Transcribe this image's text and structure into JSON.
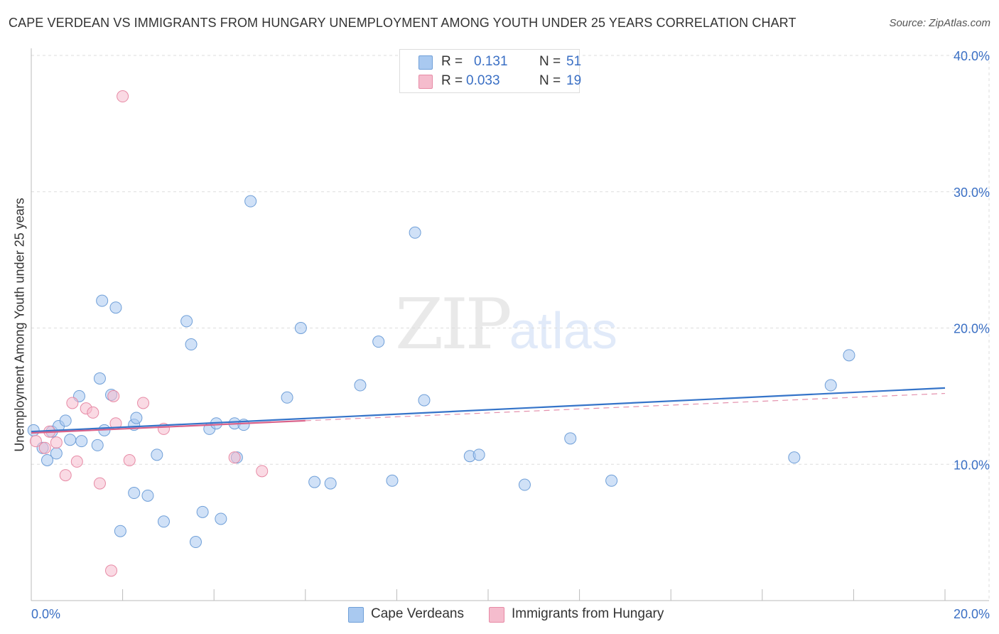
{
  "title": "CAPE VERDEAN VS IMMIGRANTS FROM HUNGARY UNEMPLOYMENT AMONG YOUTH UNDER 25 YEARS CORRELATION CHART",
  "source": "Source: ZipAtlas.com",
  "watermark": {
    "zip": "ZIP",
    "atlas": "atlas"
  },
  "legend": {
    "rows": [
      {
        "r_label": "R =",
        "r_value": "0.131",
        "n_label": "N =",
        "n_value": "51"
      },
      {
        "r_label": "R =",
        "r_value": "0.033",
        "n_label": "N =",
        "n_value": "19"
      }
    ]
  },
  "bottom_legend": [
    {
      "label": "Cape Verdeans"
    },
    {
      "label": "Immigrants from Hungary"
    }
  ],
  "colors": {
    "blue_fill": "#a9c9f0",
    "blue_stroke": "#6f9fd8",
    "blue_line": "#3574c9",
    "pink_fill": "#f5bccd",
    "pink_stroke": "#e78aa5",
    "pink_line": "#d9628a",
    "axis_text": "#3a6fc4",
    "grid": "#dddddd"
  },
  "chart_data": {
    "type": "scatter",
    "title": "CAPE VERDEAN VS IMMIGRANTS FROM HUNGARY UNEMPLOYMENT AMONG YOUTH UNDER 25 YEARS CORRELATION CHART",
    "xlabel": "",
    "ylabel": "Unemployment Among Youth under 25 years",
    "xlim": [
      0,
      20
    ],
    "ylim": [
      0,
      40
    ],
    "x_tick_labels": [
      {
        "value": 0,
        "label": "0.0%"
      },
      {
        "value": 20,
        "label": "20.0%"
      }
    ],
    "y_tick_labels": [
      {
        "value": 10,
        "label": "10.0%"
      },
      {
        "value": 20,
        "label": "20.0%"
      },
      {
        "value": 30,
        "label": "30.0%"
      },
      {
        "value": 40,
        "label": "40.0%"
      }
    ],
    "series": [
      {
        "name": "Cape Verdeans",
        "color": "blue",
        "r": 0.131,
        "n": 51,
        "trend": {
          "x": [
            0,
            20
          ],
          "y": [
            12.4,
            15.6
          ]
        },
        "points": [
          [
            0.05,
            12.5
          ],
          [
            0.25,
            11.2
          ],
          [
            0.35,
            10.3
          ],
          [
            0.45,
            12.4
          ],
          [
            0.55,
            10.8
          ],
          [
            0.6,
            12.8
          ],
          [
            0.75,
            13.2
          ],
          [
            0.85,
            11.8
          ],
          [
            1.05,
            15.0
          ],
          [
            1.1,
            11.7
          ],
          [
            1.45,
            11.4
          ],
          [
            1.6,
            12.5
          ],
          [
            1.5,
            16.3
          ],
          [
            1.55,
            22.0
          ],
          [
            1.75,
            15.1
          ],
          [
            1.85,
            21.5
          ],
          [
            1.95,
            5.1
          ],
          [
            2.25,
            7.9
          ],
          [
            2.25,
            12.9
          ],
          [
            2.3,
            13.4
          ],
          [
            2.55,
            7.7
          ],
          [
            2.75,
            10.7
          ],
          [
            2.9,
            5.8
          ],
          [
            3.5,
            18.8
          ],
          [
            3.4,
            20.5
          ],
          [
            3.6,
            4.3
          ],
          [
            3.75,
            6.5
          ],
          [
            3.9,
            12.6
          ],
          [
            4.15,
            6.0
          ],
          [
            4.05,
            13.0
          ],
          [
            4.45,
            13.0
          ],
          [
            4.8,
            29.3
          ],
          [
            4.5,
            10.5
          ],
          [
            4.65,
            12.9
          ],
          [
            5.6,
            14.9
          ],
          [
            5.9,
            20.0
          ],
          [
            6.2,
            8.7
          ],
          [
            6.55,
            8.6
          ],
          [
            7.2,
            15.8
          ],
          [
            7.6,
            19.0
          ],
          [
            7.9,
            8.8
          ],
          [
            8.4,
            27.0
          ],
          [
            8.6,
            14.7
          ],
          [
            9.6,
            10.6
          ],
          [
            9.8,
            10.7
          ],
          [
            10.8,
            8.5
          ],
          [
            11.8,
            11.9
          ],
          [
            12.7,
            8.8
          ],
          [
            16.7,
            10.5
          ],
          [
            17.5,
            15.8
          ],
          [
            17.9,
            18.0
          ]
        ]
      },
      {
        "name": "Immigrants from Hungary",
        "color": "pink",
        "r": 0.033,
        "n": 19,
        "trend": {
          "x": [
            0,
            6.0
          ],
          "y": [
            12.3,
            13.2
          ]
        },
        "trend_dashed": {
          "x": [
            6.0,
            20
          ],
          "y": [
            13.2,
            15.2
          ]
        },
        "points": [
          [
            0.1,
            11.7
          ],
          [
            0.3,
            11.2
          ],
          [
            0.4,
            12.4
          ],
          [
            0.55,
            11.6
          ],
          [
            0.75,
            9.2
          ],
          [
            0.9,
            14.5
          ],
          [
            1.0,
            10.2
          ],
          [
            1.2,
            14.1
          ],
          [
            1.35,
            13.8
          ],
          [
            1.5,
            8.6
          ],
          [
            1.75,
            2.2
          ],
          [
            1.85,
            13.0
          ],
          [
            2.0,
            37.0
          ],
          [
            2.15,
            10.3
          ],
          [
            2.45,
            14.5
          ],
          [
            2.9,
            12.6
          ],
          [
            4.45,
            10.5
          ],
          [
            5.05,
            9.5
          ],
          [
            1.8,
            15.0
          ]
        ]
      }
    ]
  }
}
